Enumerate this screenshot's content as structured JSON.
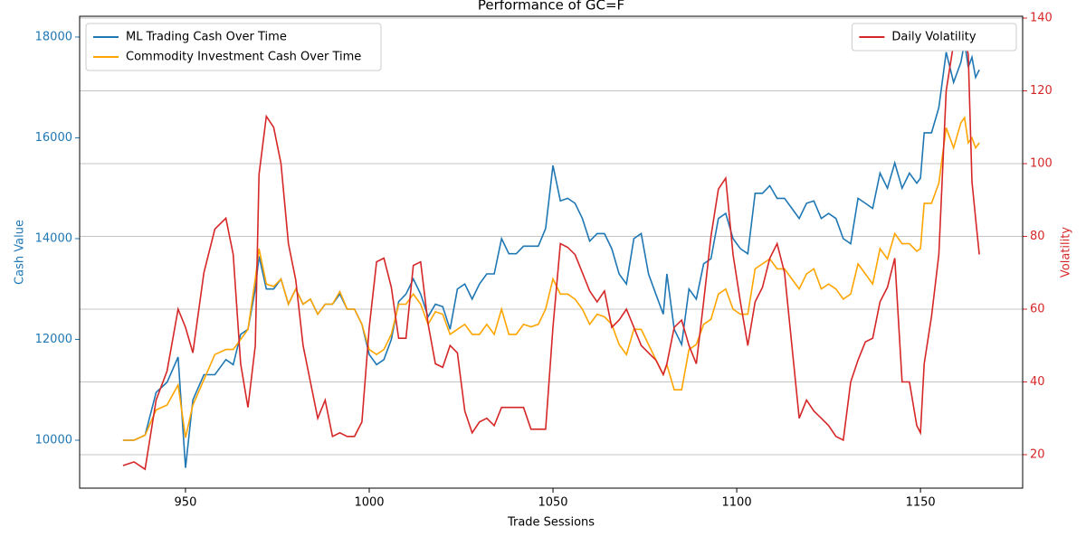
{
  "chart_data": {
    "type": "line",
    "title": "Performance of GC=F",
    "xlabel": "Trade Sessions",
    "ylabel": "Cash Value",
    "y2label": "Volatility",
    "x": [
      933,
      936,
      939,
      942,
      945,
      948,
      950,
      952,
      955,
      958,
      961,
      963,
      965,
      967,
      969,
      970,
      972,
      974,
      976,
      978,
      980,
      982,
      984,
      986,
      988,
      990,
      992,
      994,
      996,
      998,
      1000,
      1002,
      1004,
      1006,
      1008,
      1010,
      1012,
      1014,
      1016,
      1018,
      1020,
      1022,
      1024,
      1026,
      1028,
      1030,
      1032,
      1034,
      1036,
      1038,
      1040,
      1042,
      1044,
      1046,
      1048,
      1050,
      1052,
      1054,
      1056,
      1058,
      1060,
      1062,
      1064,
      1066,
      1068,
      1070,
      1072,
      1074,
      1076,
      1078,
      1080,
      1081,
      1083,
      1085,
      1087,
      1089,
      1091,
      1093,
      1095,
      1097,
      1099,
      1101,
      1103,
      1105,
      1107,
      1109,
      1111,
      1113,
      1115,
      1117,
      1119,
      1121,
      1123,
      1125,
      1127,
      1129,
      1131,
      1133,
      1135,
      1137,
      1139,
      1141,
      1143,
      1145,
      1147,
      1149,
      1150,
      1151,
      1153,
      1155,
      1157,
      1159,
      1161,
      1162,
      1163,
      1164,
      1165,
      1166
    ],
    "series": [
      {
        "name": "ML Trading Cash Over Time",
        "color": "#1f77b4",
        "axis": "y",
        "values": [
          10000,
          10000,
          10100,
          10950,
          11150,
          11650,
          9450,
          10800,
          11300,
          11300,
          11600,
          11500,
          12100,
          12200,
          13000,
          13650,
          13000,
          13000,
          13200,
          12700,
          13000,
          12700,
          12800,
          12500,
          12700,
          12700,
          12900,
          12600,
          12600,
          12300,
          11700,
          11500,
          11600,
          12000,
          12750,
          12900,
          13200,
          12900,
          12450,
          12700,
          12650,
          12200,
          13000,
          13100,
          12800,
          13100,
          13300,
          13300,
          14000,
          13700,
          13700,
          13850,
          13850,
          13850,
          14200,
          15450,
          14750,
          14800,
          14700,
          14400,
          13950,
          14100,
          14100,
          13800,
          13300,
          13100,
          14000,
          14100,
          13300,
          12900,
          12500,
          13300,
          12200,
          11900,
          13000,
          12800,
          13500,
          13600,
          14400,
          14500,
          14000,
          13800,
          13700,
          14900,
          14900,
          15050,
          14800,
          14800,
          14600,
          14400,
          14700,
          14750,
          14400,
          14500,
          14400,
          14000,
          13900,
          14800,
          14700,
          14600,
          15300,
          15000,
          15500,
          15000,
          15300,
          15100,
          15200,
          16100,
          16100,
          16600,
          17700,
          17100,
          17500,
          17900,
          17400,
          17600,
          17200,
          17350
        ]
      },
      {
        "name": "Commodity Investment Cash Over Time",
        "color": "#ffa500",
        "axis": "y",
        "values": [
          10000,
          10000,
          10100,
          10600,
          10700,
          11100,
          10050,
          10700,
          11200,
          11700,
          11800,
          11800,
          12000,
          12200,
          13200,
          13800,
          13100,
          13050,
          13200,
          12700,
          13000,
          12700,
          12800,
          12500,
          12700,
          12700,
          12950,
          12600,
          12600,
          12300,
          11800,
          11700,
          11800,
          12100,
          12700,
          12700,
          12900,
          12700,
          12300,
          12550,
          12500,
          12100,
          12200,
          12300,
          12100,
          12100,
          12300,
          12100,
          12600,
          12100,
          12100,
          12300,
          12250,
          12300,
          12600,
          13200,
          12900,
          12900,
          12800,
          12600,
          12300,
          12500,
          12450,
          12300,
          11900,
          11700,
          12200,
          12200,
          11900,
          11600,
          11300,
          11500,
          11000,
          11000,
          11800,
          11900,
          12300,
          12400,
          12900,
          13000,
          12600,
          12500,
          12500,
          13400,
          13500,
          13600,
          13400,
          13400,
          13200,
          13000,
          13300,
          13400,
          13000,
          13100,
          13000,
          12800,
          12900,
          13500,
          13300,
          13100,
          13800,
          13600,
          14100,
          13900,
          13900,
          13750,
          13800,
          14700,
          14700,
          15100,
          16200,
          15800,
          16300,
          16400,
          15900,
          16000,
          15800,
          15900
        ]
      },
      {
        "name": "Daily Volatility",
        "color": "#d62728",
        "axis": "y2",
        "values": [
          17,
          18,
          16,
          35,
          43,
          60,
          55,
          48,
          70,
          82,
          85,
          75,
          45,
          33,
          50,
          97,
          113,
          110,
          100,
          78,
          68,
          50,
          40,
          30,
          35,
          25,
          26,
          25,
          25,
          29,
          55,
          73,
          74,
          66,
          52,
          52,
          72,
          73,
          56,
          45,
          44,
          50,
          48,
          32,
          26,
          29,
          30,
          28,
          33,
          33,
          33,
          33,
          27,
          27,
          27,
          55,
          78,
          77,
          75,
          70,
          65,
          62,
          65,
          55,
          57,
          60,
          55,
          50,
          48,
          46,
          42,
          45,
          55,
          57,
          50,
          45,
          62,
          80,
          93,
          96,
          75,
          62,
          50,
          62,
          66,
          74,
          78,
          70,
          50,
          30,
          35,
          32,
          30,
          28,
          25,
          24,
          40,
          46,
          51,
          52,
          62,
          66,
          74,
          40,
          40,
          28,
          26,
          45,
          58,
          75,
          120,
          133,
          134,
          135,
          130,
          95,
          85,
          75
        ]
      }
    ],
    "xlim": [
      921.2,
      1177.8
    ],
    "xticks": [
      950,
      1000,
      1050,
      1100,
      1150
    ],
    "ylim": [
      9049,
      18412
    ],
    "yticks": [
      10000,
      12000,
      14000,
      16000,
      18000
    ],
    "y2lim": [
      10.8,
      140.5
    ],
    "y2ticks": [
      20,
      40,
      60,
      80,
      100,
      120,
      140
    ],
    "grid": "y2",
    "legend": "upper left",
    "legend2": "upper right"
  }
}
